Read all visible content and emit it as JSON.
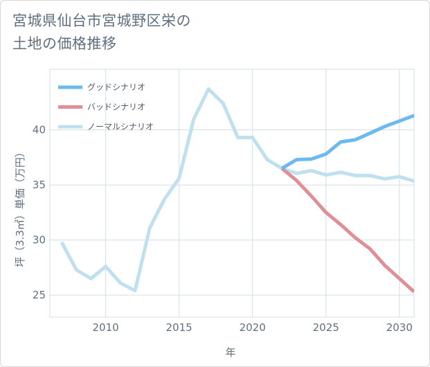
{
  "title": {
    "line1": "宮城県仙台市宮城野区栄の",
    "line2": "土地の価格推移"
  },
  "chart_data": {
    "type": "line",
    "title": "宮城県仙台市宮城野区栄の土地の価格推移",
    "xlabel": "年",
    "ylabel": "坪（3.3㎡）単価（万円）",
    "xlim": [
      2006.2,
      2031
    ],
    "ylim": [
      23,
      45.5
    ],
    "xticks": [
      2010,
      2015,
      2020,
      2025,
      2030
    ],
    "yticks": [
      25,
      30,
      35,
      40
    ],
    "grid": true,
    "legend_position": "top-left",
    "series": [
      {
        "name": "グッドシナリオ",
        "color": "#6cb9ee",
        "x": [
          2022,
          2023,
          2024,
          2025,
          2026,
          2027,
          2028,
          2029,
          2030,
          2031
        ],
        "y": [
          36.5,
          37.3,
          37.35,
          37.8,
          38.9,
          39.1,
          39.7,
          40.3,
          40.8,
          41.3
        ]
      },
      {
        "name": "バッドシナリオ",
        "color": "#df8f96",
        "x": [
          2022,
          2023,
          2024,
          2025,
          2026,
          2027,
          2028,
          2029,
          2030,
          2031
        ],
        "y": [
          36.5,
          35.4,
          34.0,
          32.5,
          31.4,
          30.2,
          29.2,
          27.7,
          26.5,
          25.3
        ]
      },
      {
        "name": "ノーマルシナリオ",
        "color": "#bfe0ee",
        "x": [
          2007,
          2008,
          2009,
          2010,
          2011,
          2012,
          2013,
          2014,
          2015,
          2016,
          2017,
          2018,
          2019,
          2020,
          2021,
          2022,
          2023,
          2024,
          2025,
          2026,
          2027,
          2028,
          2029,
          2030,
          2031
        ],
        "y": [
          29.8,
          27.3,
          26.5,
          27.6,
          26.1,
          25.4,
          31.1,
          33.7,
          35.6,
          41.0,
          43.7,
          42.4,
          39.3,
          39.3,
          37.3,
          36.5,
          36.05,
          36.3,
          35.9,
          36.15,
          35.85,
          35.85,
          35.55,
          35.75,
          35.35
        ]
      }
    ]
  }
}
